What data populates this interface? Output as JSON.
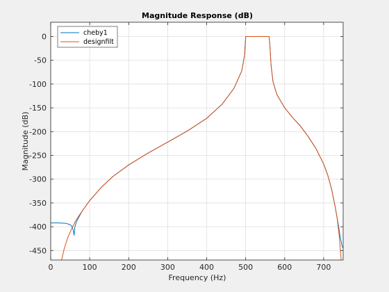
{
  "chart_data": {
    "type": "line",
    "title": "Magnitude Response (dB)",
    "xlabel": "Frequency (Hz)",
    "ylabel": "Magnitude (dB)",
    "xlim": [
      0,
      750
    ],
    "ylim": [
      -470,
      30
    ],
    "xticks": [
      0,
      100,
      200,
      300,
      400,
      500,
      600,
      700
    ],
    "yticks": [
      0,
      -50,
      -100,
      -150,
      -200,
      -250,
      -300,
      -350,
      -400,
      -450
    ],
    "grid": true,
    "legend_position": "top-left",
    "series": [
      {
        "name": "cheby1",
        "color": "#0072bd",
        "x": [
          0,
          20,
          40,
          50,
          55,
          58,
          60,
          62,
          64,
          66,
          70,
          80,
          100,
          130,
          160,
          200,
          250,
          300,
          350,
          400,
          440,
          470,
          490,
          497,
          499,
          500,
          560,
          562,
          565,
          570,
          580,
          600,
          620,
          640,
          660,
          680,
          700,
          710,
          720,
          730,
          738,
          742,
          745,
          747,
          750
        ],
        "y": [
          -392,
          -392,
          -393,
          -396,
          -400,
          -408,
          -418,
          -400,
          -395,
          -390,
          -383,
          -368,
          -345,
          -317,
          -294,
          -270,
          -245,
          -222,
          -199,
          -172,
          -142,
          -109,
          -72,
          -40,
          -15,
          0,
          0,
          -18,
          -60,
          -95,
          -122,
          -150,
          -170,
          -188,
          -210,
          -235,
          -268,
          -290,
          -320,
          -360,
          -398,
          -420,
          -432,
          -440,
          -445
        ]
      },
      {
        "name": "designfilt",
        "color": "#d95319",
        "x": [
          28,
          35,
          45,
          55,
          65,
          70,
          80,
          100,
          130,
          160,
          200,
          250,
          300,
          350,
          400,
          440,
          470,
          490,
          497,
          499,
          500,
          560,
          562,
          565,
          570,
          580,
          600,
          620,
          640,
          660,
          680,
          700,
          710,
          720,
          730,
          735,
          740,
          742,
          745
        ],
        "y": [
          -470,
          -445,
          -420,
          -402,
          -386,
          -380,
          -368,
          -345,
          -317,
          -294,
          -270,
          -245,
          -222,
          -199,
          -172,
          -142,
          -109,
          -72,
          -40,
          -15,
          0,
          0,
          -18,
          -60,
          -95,
          -122,
          -150,
          -170,
          -188,
          -210,
          -235,
          -268,
          -290,
          -320,
          -360,
          -385,
          -420,
          -440,
          -470
        ]
      }
    ]
  }
}
